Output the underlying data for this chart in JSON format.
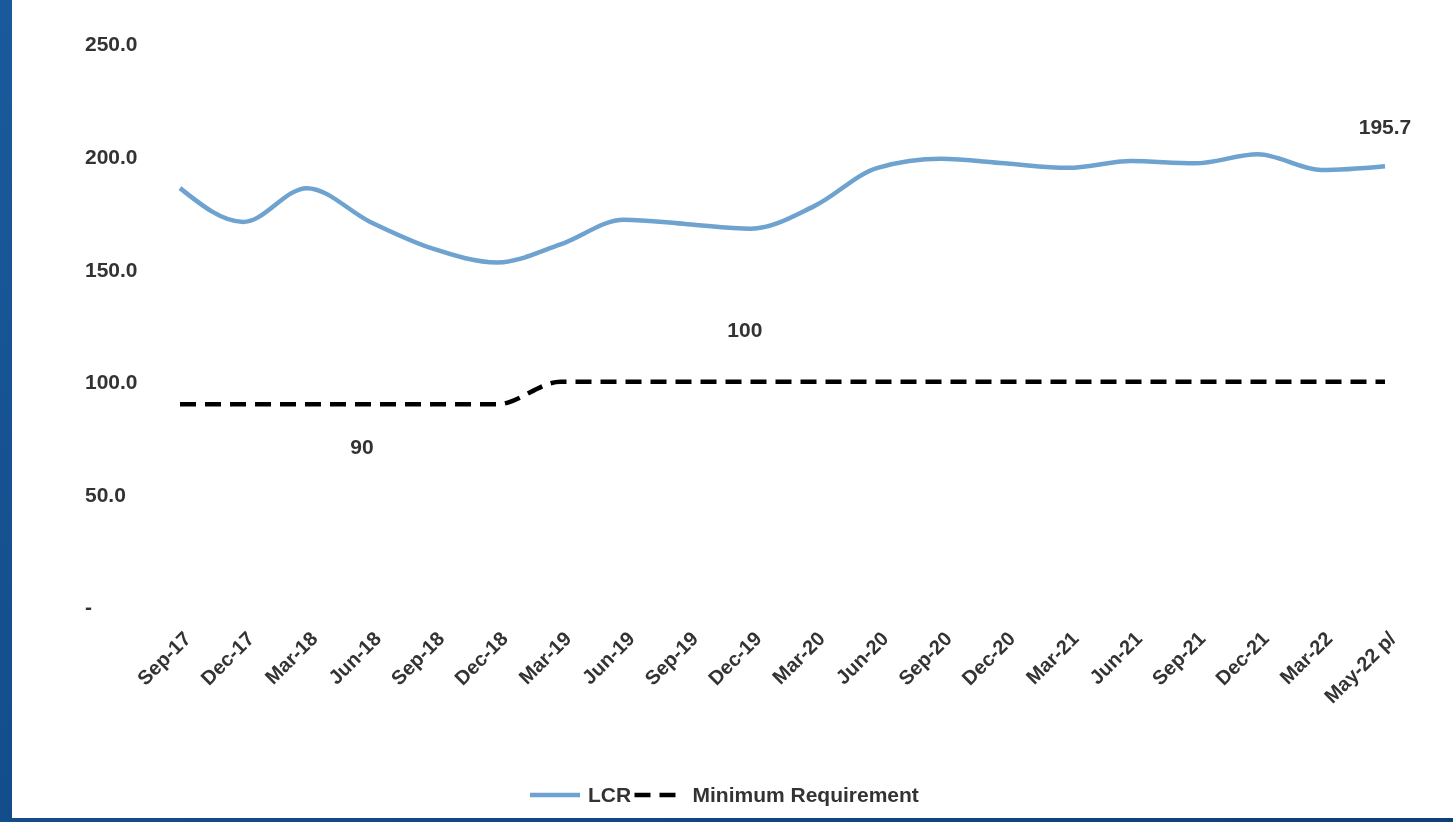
{
  "chart_data": {
    "type": "line",
    "categories": [
      "Sep-17",
      "Dec-17",
      "Mar-18",
      "Jun-18",
      "Sep-18",
      "Dec-18",
      "Mar-19",
      "Jun-19",
      "Sep-19",
      "Dec-19",
      "Mar-20",
      "Jun-20",
      "Sep-20",
      "Dec-20",
      "Mar-21",
      "Jun-21",
      "Sep-21",
      "Dec-21",
      "Mar-22",
      "May-22 p/"
    ],
    "series": [
      {
        "name": "LCR",
        "color": "#6ea3cf",
        "line_style": "solid",
        "values": [
          186,
          171,
          186,
          171,
          159,
          153,
          161,
          172,
          170,
          168,
          178,
          195,
          199,
          197,
          195,
          198,
          197,
          201,
          194,
          195.7
        ],
        "value_labels": [
          null,
          null,
          null,
          null,
          null,
          null,
          null,
          null,
          null,
          null,
          null,
          null,
          null,
          null,
          null,
          null,
          null,
          null,
          null,
          "195.7"
        ]
      },
      {
        "name": "Minimum Requirement",
        "color": "#000000",
        "line_style": "dashed",
        "values": [
          90,
          90,
          90,
          90,
          90,
          90,
          100,
          100,
          100,
          100,
          100,
          100,
          100,
          100,
          100,
          100,
          100,
          100,
          100,
          100
        ]
      }
    ],
    "annotations": [
      {
        "text": "90",
        "x": "Jun-18",
        "y": 90
      },
      {
        "text": "100",
        "x": "Sep-19",
        "y": 100
      }
    ],
    "ylim": [
      0,
      250
    ],
    "yticks": [
      {
        "value": 0,
        "label": "-"
      },
      {
        "value": 50,
        "label": "50.0"
      },
      {
        "value": 100,
        "label": "100.0"
      },
      {
        "value": 150,
        "label": "150.0"
      },
      {
        "value": 200,
        "label": "200.0"
      },
      {
        "value": 250,
        "label": "250.0"
      }
    ],
    "grid": false,
    "legend": "bottom",
    "marker": "none"
  }
}
